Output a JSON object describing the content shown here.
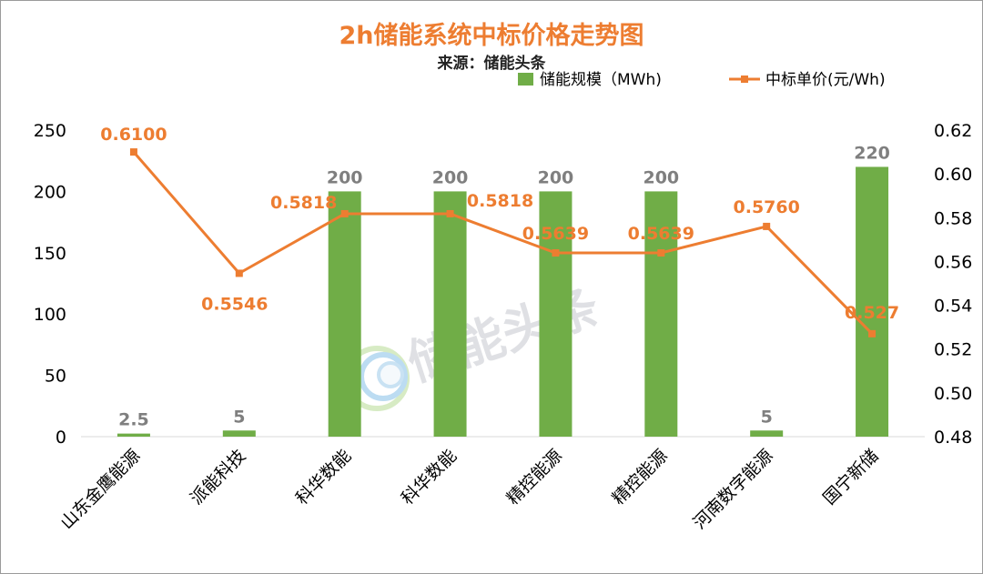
{
  "colors": {
    "bar": "#70ad47",
    "line": "#ed7d31",
    "title": "#ed7d31",
    "axis": "#d9d9d9"
  },
  "watermark": {
    "text": "储能头条"
  },
  "chart_data": {
    "type": "bar",
    "title": "2h储能系统中标价格走势图",
    "subtitle": "来源：储能头条",
    "legend_position": "top-right",
    "grid": false,
    "categories": [
      "山东金鹰能源",
      "派能科技",
      "科华数能",
      "科华数能",
      "精控能源",
      "精控能源",
      "河南数字能源",
      "国宁新储"
    ],
    "series": [
      {
        "name": "储能规模（MWh)",
        "type": "bar",
        "axis": "left",
        "values": [
          2.5,
          5,
          200,
          200,
          200,
          200,
          5,
          220
        ],
        "labels": [
          "2.5",
          "5",
          "200",
          "200",
          "200",
          "200",
          "5",
          "220"
        ]
      },
      {
        "name": "中标单价(元/Wh)",
        "type": "line",
        "axis": "right",
        "values": [
          0.61,
          0.5546,
          0.5818,
          0.5818,
          0.5639,
          0.5639,
          0.576,
          0.527
        ],
        "labels": [
          "0.6100",
          "0.5546",
          "0.5818",
          "0.5818",
          "0.5639",
          "0.5639",
          "0.5760",
          "0.527"
        ]
      }
    ],
    "y_left": {
      "min": 0,
      "max": 250,
      "ticks": [
        "0",
        "50",
        "100",
        "150",
        "200",
        "250"
      ]
    },
    "y_right": {
      "min": 0.48,
      "max": 0.62,
      "ticks": [
        "0.48",
        "0.50",
        "0.52",
        "0.54",
        "0.56",
        "0.58",
        "0.60",
        "0.62"
      ]
    }
  }
}
